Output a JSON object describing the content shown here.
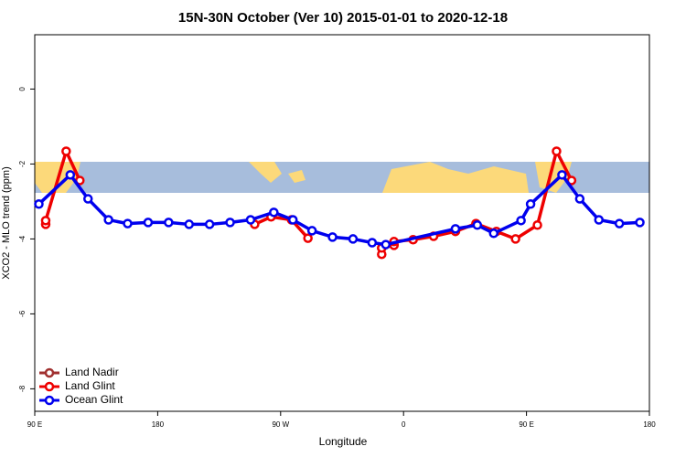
{
  "chart_data": {
    "type": "line",
    "title": "15N-30N October (Ver 10)   2015-01-01 to 2020-12-18",
    "x_label": "Longitude",
    "y_label": "XCO2 - MLO trend (ppm)",
    "xlim": [
      90,
      540
    ],
    "ylim": [
      -8.6,
      1.45
    ],
    "xticks": [
      {
        "value": 90,
        "label": "90 E"
      },
      180,
      {
        "value": 270,
        "label": "90 W"
      },
      {
        "value": 360,
        "label": "0"
      },
      {
        "value": 450,
        "label": "90 E"
      },
      {
        "value": 540,
        "label": "180"
      }
    ],
    "yticks": [
      0,
      -2,
      -4,
      -6,
      -8
    ],
    "legend": "bottom-left",
    "series": [
      {
        "name": "Land Nadir",
        "color": "#a0302f",
        "x": [
          344,
          353
        ],
        "values": [
          -4.24,
          -4.15
        ]
      },
      {
        "name": "Land Glint",
        "color": "#ee0000",
        "x": [
          98,
          98,
          113,
          123,
          null,
          251,
          263,
          278,
          290,
          null,
          344,
          344,
          353,
          353,
          367,
          382,
          398,
          413,
          428,
          442,
          458,
          472,
          483
        ],
        "values": [
          -3.61,
          -3.51,
          -1.66,
          -2.44,
          null,
          -3.61,
          -3.41,
          -3.49,
          -3.98,
          null,
          -4.41,
          -4.24,
          -4.17,
          -4.07,
          -4.02,
          -3.93,
          -3.8,
          -3.59,
          -3.8,
          -4.0,
          -3.63,
          -1.66,
          -2.44
        ]
      },
      {
        "name": "Ocean Glint",
        "color": "#0000ee",
        "x": [
          93,
          116,
          129,
          144,
          158,
          173,
          188,
          203,
          218,
          233,
          248,
          265,
          279,
          293,
          308,
          323,
          337,
          347,
          398,
          414,
          426,
          446,
          453,
          476,
          489,
          503,
          518,
          533
        ],
        "values": [
          -3.07,
          -2.29,
          -2.93,
          -3.49,
          -3.59,
          -3.56,
          -3.56,
          -3.61,
          -3.61,
          -3.56,
          -3.49,
          -3.29,
          -3.49,
          -3.78,
          -3.95,
          -4.0,
          -4.1,
          -4.15,
          -3.73,
          -3.63,
          -3.85,
          -3.51,
          -3.07,
          -2.29,
          -2.93,
          -3.49,
          -3.59,
          -3.56
        ]
      }
    ]
  }
}
